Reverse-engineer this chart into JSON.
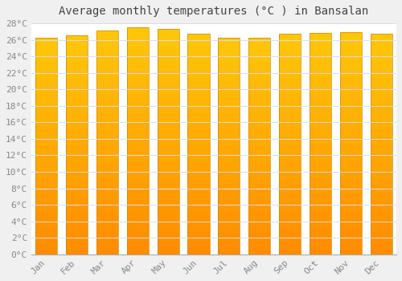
{
  "title": "Average monthly temperatures (°C ) in Bansalan",
  "months": [
    "Jan",
    "Feb",
    "Mar",
    "Apr",
    "May",
    "Jun",
    "Jul",
    "Aug",
    "Sep",
    "Oct",
    "Nov",
    "Dec"
  ],
  "values": [
    26.3,
    26.5,
    27.1,
    27.5,
    27.3,
    26.7,
    26.3,
    26.3,
    26.7,
    26.8,
    26.9,
    26.7
  ],
  "ylim": [
    0,
    28
  ],
  "ytick_step": 2,
  "bar_color": "#FFA500",
  "bar_edge_color": "#E08000",
  "background_color": "#F0F0F0",
  "plot_bg_color": "#FFFFFF",
  "grid_color": "#DDDDDD",
  "title_fontsize": 10,
  "tick_fontsize": 8,
  "tick_color": "#888888"
}
